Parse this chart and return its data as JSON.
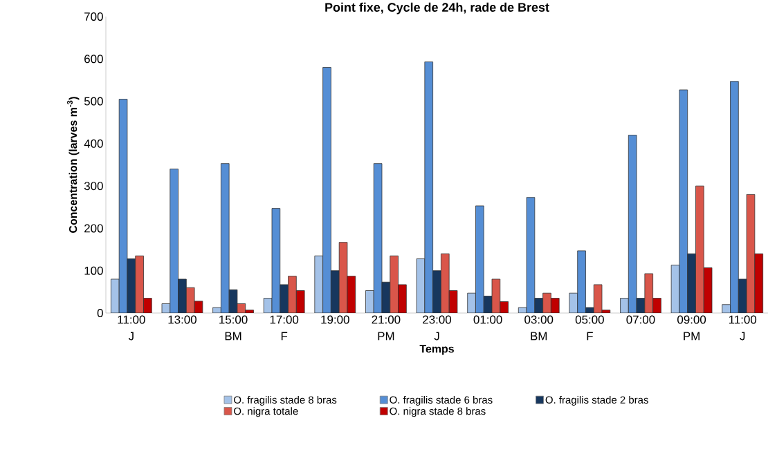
{
  "chart_data": {
    "type": "bar",
    "title": "Point fixe, Cycle de 24h, rade de Brest",
    "xlabel": "Temps",
    "ylabel": "Concentration (larves m$^{-3}$)",
    "categories": [
      "11:00 J",
      "13:00",
      "15:00 BM",
      "17:00 F",
      "19:00",
      "21:00 PM",
      "23:00 J",
      "01:00",
      "03:00 BM",
      "05:00 F",
      "07:00",
      "09:00 PM",
      "11:00 J"
    ],
    "series": [
      {
        "name": "O. fragilis stade 8 bras",
        "color": "#a4c2e8",
        "values": [
          80,
          22,
          13,
          35,
          135,
          53,
          128,
          47,
          13,
          47,
          35,
          113,
          20
        ]
      },
      {
        "name": "O. fragilis stade 6 bras",
        "color": "#558ed5",
        "values": [
          505,
          340,
          353,
          247,
          580,
          353,
          593,
          253,
          273,
          147,
          420,
          527,
          547
        ]
      },
      {
        "name": "O. fragilis stade 2 bras",
        "color": "#17375e",
        "values": [
          128,
          80,
          55,
          67,
          100,
          73,
          100,
          40,
          35,
          13,
          35,
          140,
          80
        ]
      },
      {
        "name": "O. nigra totale",
        "color": "#d9564a",
        "values": [
          135,
          60,
          22,
          87,
          167,
          135,
          140,
          80,
          47,
          67,
          93,
          300,
          280
        ]
      },
      {
        "name": "O. nigra stade 8 bras",
        "color": "#c00000",
        "values": [
          35,
          28,
          7,
          53,
          87,
          67,
          53,
          27,
          35,
          7,
          35,
          107,
          140
        ]
      }
    ],
    "ylim": [
      0,
      700
    ],
    "yticks": [
      0,
      100,
      200,
      300,
      400,
      500,
      600,
      700
    ],
    "legend": "bottom"
  }
}
